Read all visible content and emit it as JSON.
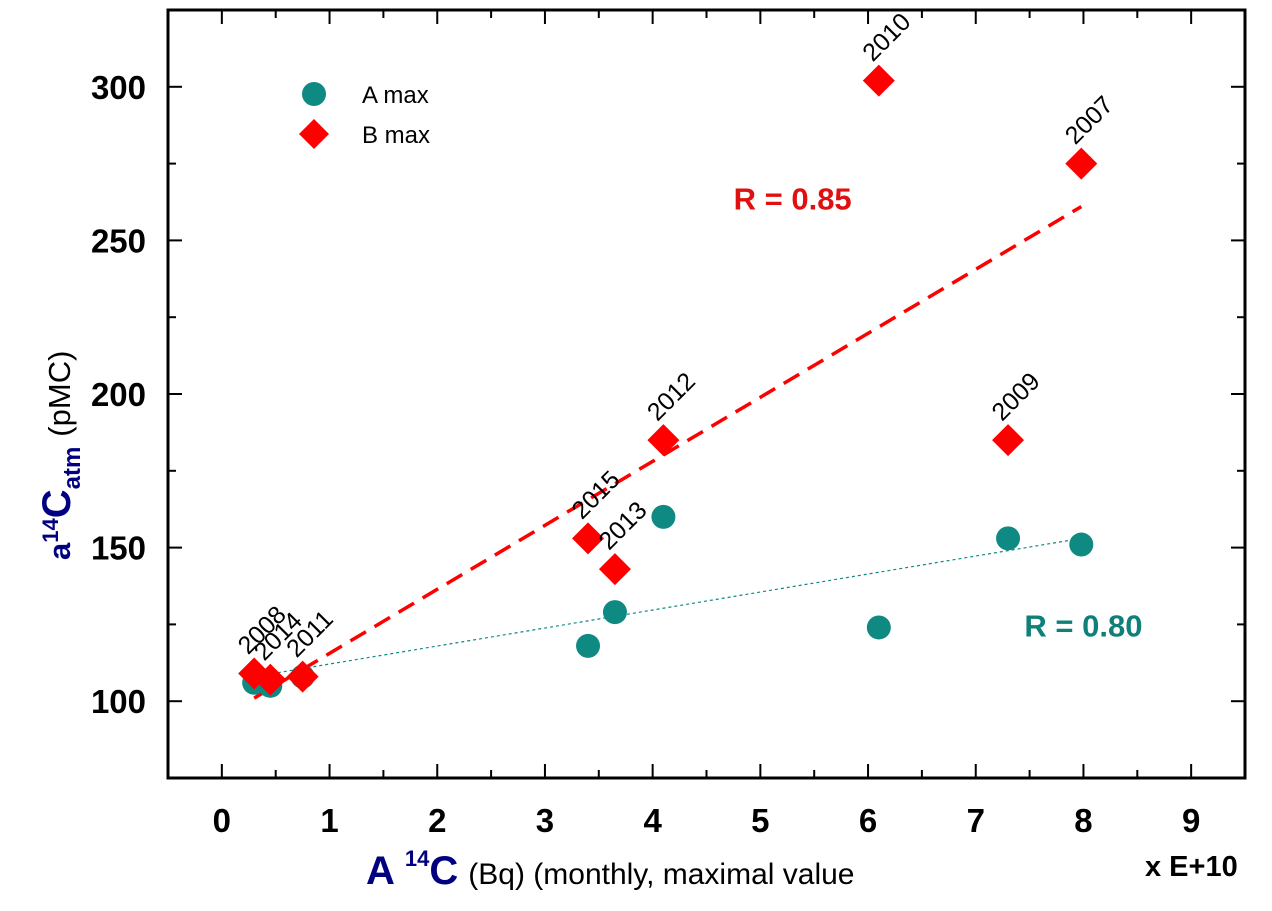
{
  "chart_data": {
    "type": "scatter",
    "xlabel": {
      "main": "A",
      "sup": "14",
      "element": "C",
      "rest": "(Bq) (monthly, maximal value"
    },
    "x_multiplier": "x E+10",
    "ylabel": {
      "prefix": "a",
      "sup": "14",
      "element": "C",
      "sub": "atm",
      "rest": "(pMC)"
    },
    "xlim": [
      -0.5,
      9.5
    ],
    "ylim": [
      75,
      325
    ],
    "x_ticks": [
      0,
      1,
      2,
      3,
      4,
      5,
      6,
      7,
      8,
      9
    ],
    "y_ticks": [
      100,
      150,
      200,
      250,
      300
    ],
    "x_tick_labels": [
      "0",
      "1",
      "2",
      "3",
      "4",
      "5",
      "6",
      "7",
      "8",
      "9"
    ],
    "y_tick_labels": [
      "100",
      "150",
      "200",
      "250",
      "300"
    ],
    "legend": {
      "position": "top-left",
      "entries": [
        "A max",
        "B max"
      ]
    },
    "series": [
      {
        "name": "A max",
        "marker": "circle",
        "color": "#0f8a82",
        "points": [
          {
            "x": 0.3,
            "y": 106
          },
          {
            "x": 0.45,
            "y": 105
          },
          {
            "x": 0.75,
            "y": 108
          },
          {
            "x": 3.4,
            "y": 118
          },
          {
            "x": 3.65,
            "y": 129
          },
          {
            "x": 4.1,
            "y": 160
          },
          {
            "x": 6.1,
            "y": 124
          },
          {
            "x": 7.3,
            "y": 153
          },
          {
            "x": 7.98,
            "y": 151
          }
        ],
        "fit": {
          "x0": 0.3,
          "y0": 108,
          "x1": 7.98,
          "y1": 153,
          "style": "dotted",
          "label": "R = 0.80"
        }
      },
      {
        "name": "B max",
        "marker": "diamond",
        "color": "#ff0000",
        "points": [
          {
            "x": 0.3,
            "y": 109,
            "label": "2008"
          },
          {
            "x": 0.45,
            "y": 107,
            "label": "2014"
          },
          {
            "x": 0.75,
            "y": 108,
            "label": "2011"
          },
          {
            "x": 3.4,
            "y": 153,
            "label": "2015"
          },
          {
            "x": 3.65,
            "y": 143,
            "label": "2013"
          },
          {
            "x": 4.1,
            "y": 185,
            "label": "2012"
          },
          {
            "x": 6.1,
            "y": 302,
            "label": "2010"
          },
          {
            "x": 7.3,
            "y": 185,
            "label": "2009"
          },
          {
            "x": 7.98,
            "y": 275,
            "label": "2007"
          }
        ],
        "fit": {
          "x0": 0.3,
          "y0": 101,
          "x1": 7.98,
          "y1": 261,
          "style": "dashed",
          "label": "R = 0.85"
        }
      }
    ],
    "fit_labels": [
      {
        "text": "R = 0.85",
        "color": "#e01010",
        "x": 5.3,
        "y": 260
      },
      {
        "text": "R = 0.80",
        "color": "#0f7f7a",
        "x": 8.0,
        "y": 121
      }
    ]
  }
}
